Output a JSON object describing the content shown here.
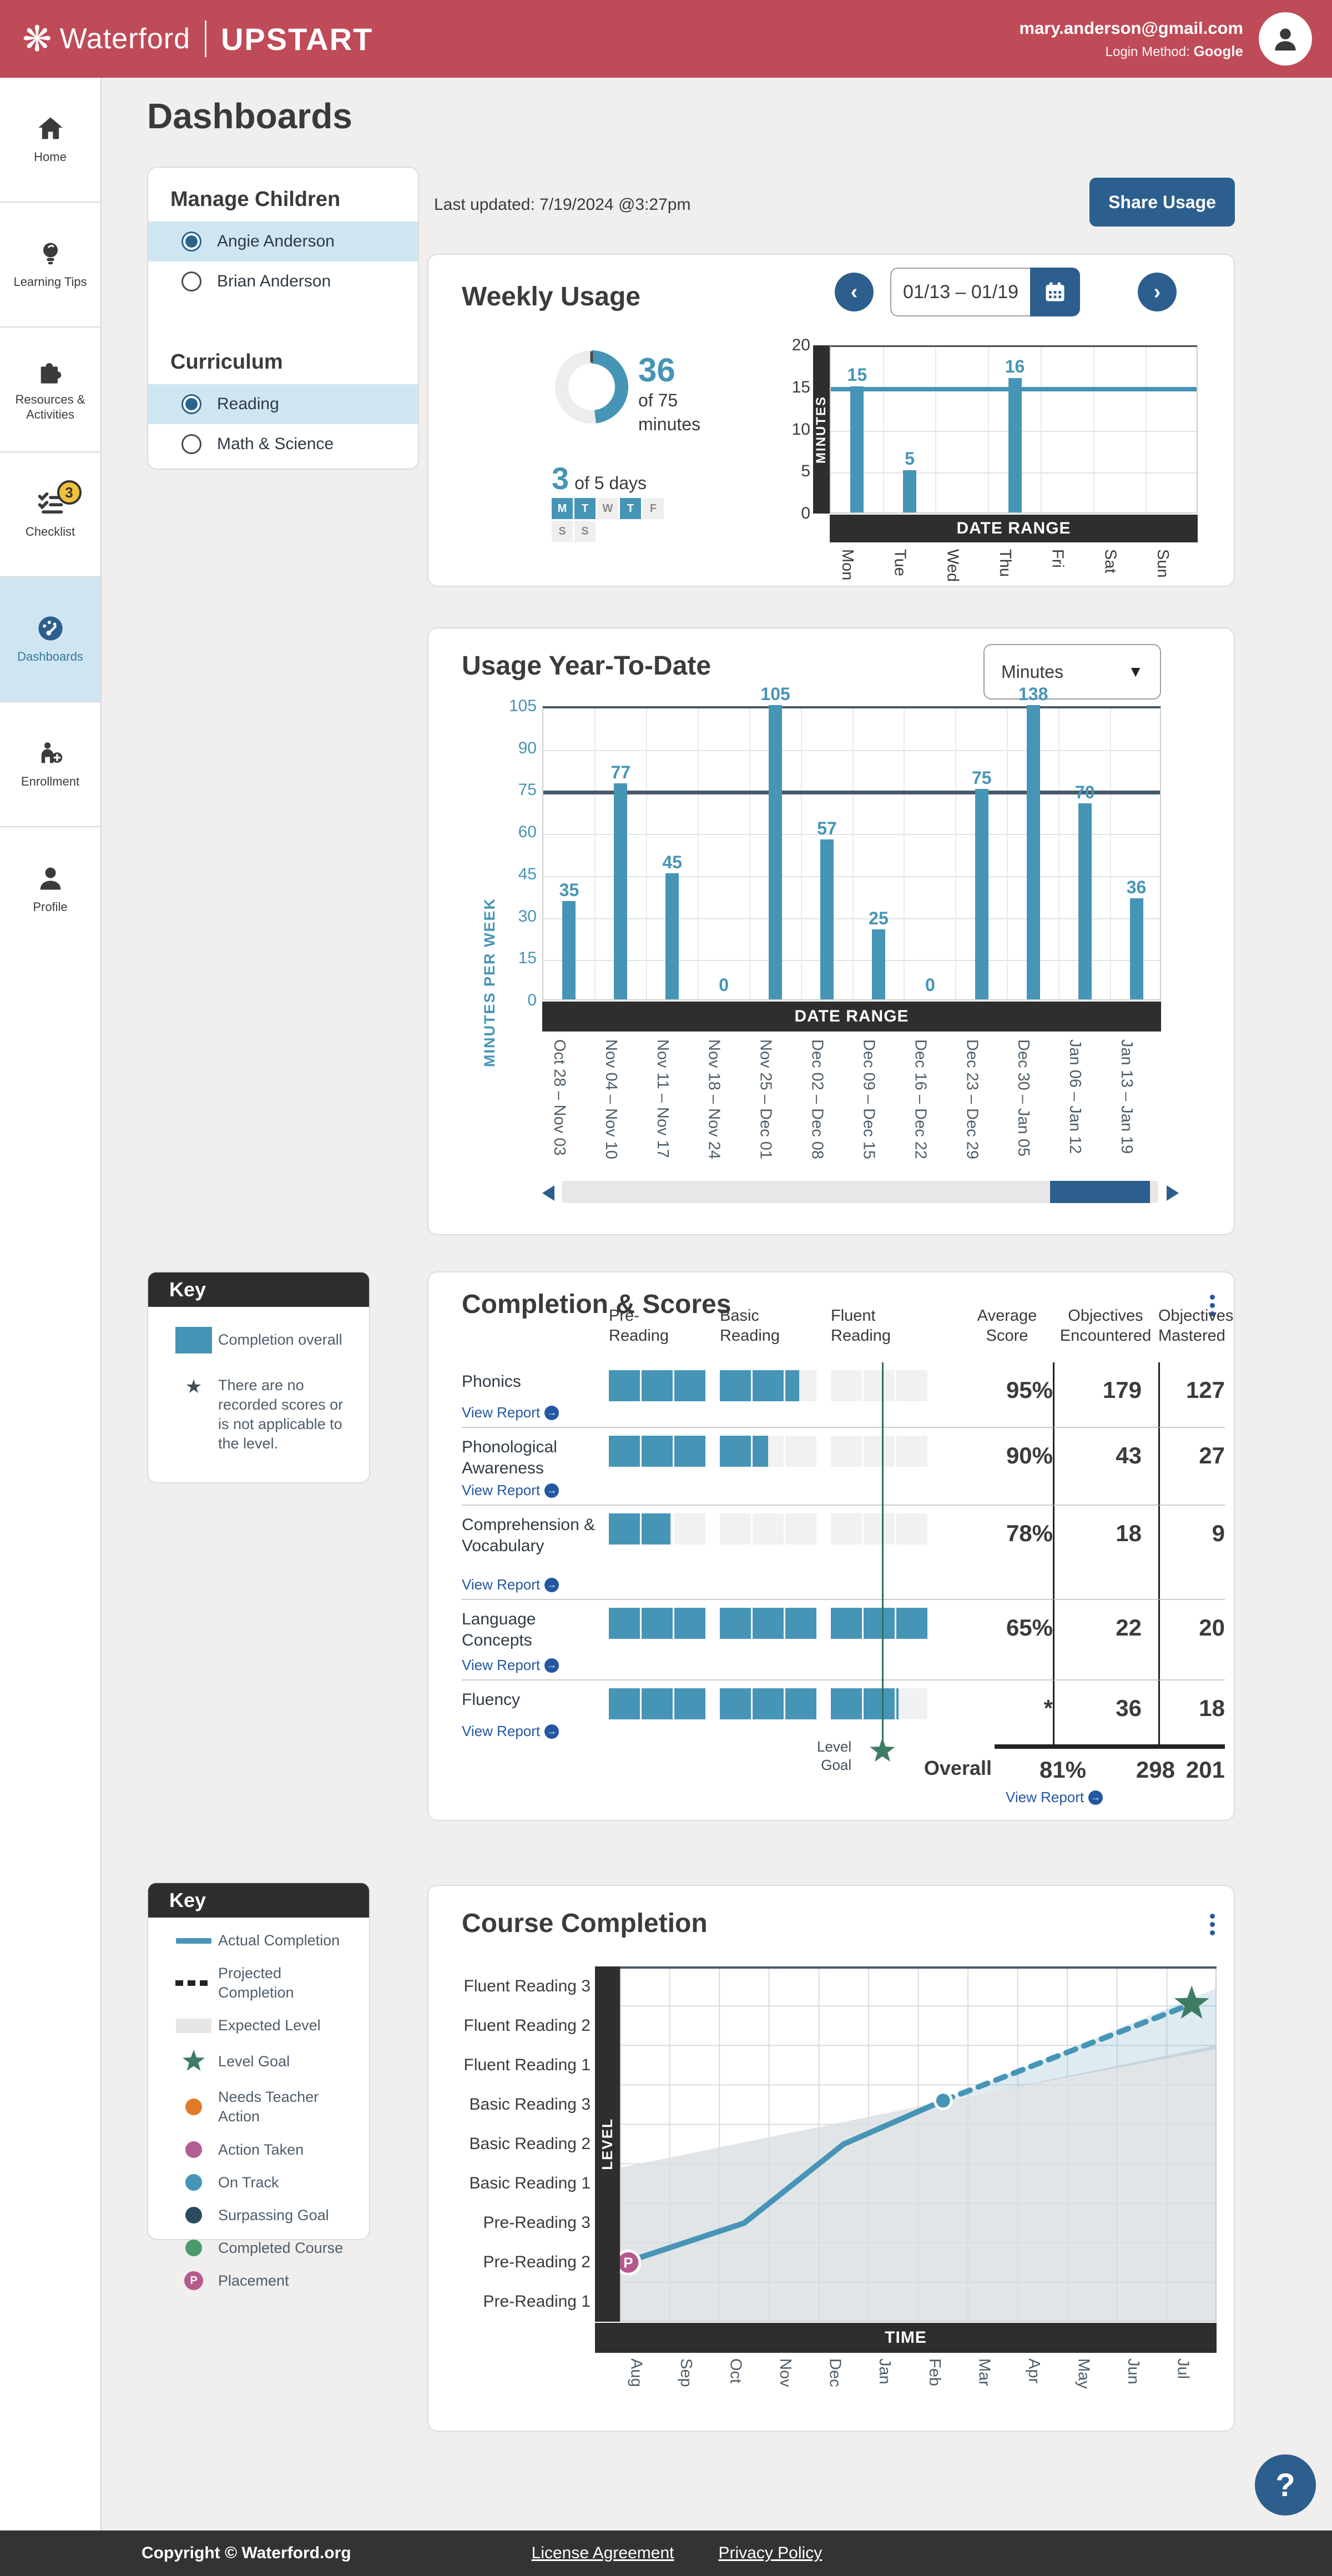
{
  "header": {
    "brand": "Waterford",
    "product": "UPSTART",
    "email": "mary.anderson@gmail.com",
    "login_label": "Login Method:",
    "login_method": "Google"
  },
  "sidebar": {
    "items": [
      {
        "label": "Home"
      },
      {
        "label": "Learning Tips"
      },
      {
        "label": "Resources & Activities"
      },
      {
        "label": "Checklist",
        "badge": "3"
      },
      {
        "label": "Dashboards",
        "active": true
      },
      {
        "label": "Enrollment"
      },
      {
        "label": "Profile"
      }
    ]
  },
  "page": {
    "title": "Dashboards",
    "last_updated": "Last updated: 7/19/2024 @3:27pm",
    "share_button": "Share Usage"
  },
  "manage": {
    "title": "Manage Children",
    "children": [
      {
        "name": "Angie Anderson",
        "selected": true
      },
      {
        "name": "Brian Anderson",
        "selected": false
      }
    ],
    "curriculum_title": "Curriculum",
    "curricula": [
      {
        "name": "Reading",
        "selected": true
      },
      {
        "name": "Math & Science",
        "selected": false
      }
    ]
  },
  "weekly": {
    "title": "Weekly Usage",
    "date_range": "01/13 – 01/19",
    "donut": {
      "value": "36",
      "of": "of 75",
      "unit": "minutes",
      "percent": 48
    },
    "days": {
      "value": "3",
      "of": "of 5 days",
      "rows": [
        [
          {
            "label": "M",
            "filled": true
          },
          {
            "label": "T",
            "filled": true
          },
          {
            "label": "W",
            "filled": false
          },
          {
            "label": "T",
            "filled": true
          },
          {
            "label": "F",
            "filled": false
          }
        ],
        [
          {
            "label": "S",
            "filled": false
          },
          {
            "label": "S",
            "filled": false
          }
        ]
      ]
    },
    "chart": {
      "ylabel": "MINUTES",
      "xlabel": "DATE RANGE",
      "ymax": 20,
      "ticks": [
        20,
        15,
        10,
        5,
        0
      ],
      "goal": 15,
      "categories": [
        "Mon",
        "Tue",
        "Wed",
        "Thu",
        "Fri",
        "Sat",
        "Sun"
      ],
      "values": [
        15,
        5,
        0,
        16,
        0,
        0,
        0
      ]
    }
  },
  "ytd": {
    "title": "Usage Year-To-Date",
    "dropdown": "Minutes",
    "chart": {
      "ylabel": "MINUTES PER WEEK",
      "xlabel": "DATE RANGE",
      "ymax": 105,
      "ticks": [
        105,
        90,
        75,
        60,
        45,
        30,
        15,
        0
      ],
      "goal": 75,
      "categories": [
        "Oct 28 – Nov 03",
        "Nov 04 – Nov 10",
        "Nov 11 – Nov 17",
        "Nov 18 – Nov 24",
        "Nov 25 – Dec 01",
        "Dec 02 – Dec 08",
        "Dec 09 – Dec 15",
        "Dec 16 – Dec 22",
        "Dec 23 – Dec 29",
        "Dec 30 – Jan 05",
        "Jan 06 – Jan 12",
        "Jan 13 – Jan 19"
      ],
      "values": [
        35,
        77,
        45,
        0,
        105,
        57,
        25,
        0,
        75,
        138,
        70,
        36
      ]
    }
  },
  "completion": {
    "title": "Completion & Scores",
    "bar_headers": [
      "Pre-\nReading",
      "Basic\nReading",
      "Fluent\nReading"
    ],
    "value_headers": [
      "Average\nScore",
      "Objectives\nEncountered",
      "Objectives\nMastered"
    ],
    "view_report": "View Report",
    "level_goal": "Level\nGoal",
    "rows": [
      {
        "label": "Phonics",
        "fills": [
          1,
          1,
          1,
          1,
          1,
          0.45,
          0,
          0,
          0
        ],
        "score": "95%",
        "encountered": "179",
        "mastered": "127"
      },
      {
        "label": "Phonological Awareness",
        "fills": [
          1,
          1,
          1,
          1,
          0.5,
          0,
          0,
          0,
          0
        ],
        "score": "90%",
        "encountered": "43",
        "mastered": "27"
      },
      {
        "label": "Comprehension & Vocabulary",
        "fills": [
          1,
          0.92,
          0,
          0,
          0,
          0,
          0,
          0,
          0
        ],
        "score": "78%",
        "encountered": "18",
        "mastered": "9"
      },
      {
        "label": "Language Concepts",
        "fills": [
          1,
          1,
          1,
          1,
          1,
          1,
          1,
          1,
          1
        ],
        "score": "65%",
        "encountered": "22",
        "mastered": "20"
      },
      {
        "label": "Fluency",
        "fills": [
          1,
          1,
          1,
          1,
          1,
          1,
          1,
          1,
          0.08
        ],
        "score": "*",
        "encountered": "36",
        "mastered": "18"
      }
    ],
    "overall": {
      "label": "Overall",
      "score": "81%",
      "encountered": "298",
      "mastered": "201"
    }
  },
  "key1": {
    "title": "Key",
    "swatch_label": "Completion overall",
    "star_label": "There are no recorded scores or is not applicable to the level."
  },
  "key2": {
    "title": "Key",
    "items": [
      {
        "type": "line",
        "label": "Actual Completion"
      },
      {
        "type": "dash",
        "label": "Projected Completion"
      },
      {
        "type": "box",
        "label": "Expected Level"
      },
      {
        "type": "star",
        "label": "Level Goal"
      },
      {
        "type": "dot",
        "color": "#e07b2a",
        "label": "Needs Teacher Action"
      },
      {
        "type": "dot",
        "color": "#b35e93",
        "label": "Action Taken"
      },
      {
        "type": "dot",
        "color": "#4695b6",
        "label": "On Track"
      },
      {
        "type": "dot",
        "color": "#2c4b5e",
        "label": "Surpassing Goal"
      },
      {
        "type": "dot",
        "color": "#4a9b6c",
        "label": "Completed Course"
      },
      {
        "type": "badge",
        "color": "#b55a8d",
        "label": "Placement"
      }
    ]
  },
  "course": {
    "title": "Course Completion",
    "ylabel": "LEVEL",
    "xlabel": "TIME",
    "levels": [
      "Fluent Reading 3",
      "Fluent Reading 2",
      "Fluent Reading 1",
      "Basic Reading 3",
      "Basic Reading 2",
      "Basic Reading 1",
      "Pre-Reading 3",
      "Pre-Reading 2",
      "Pre-Reading 1"
    ],
    "months": [
      "Aug",
      "Sep",
      "Oct",
      "Nov",
      "Dec",
      "Jan",
      "Feb",
      "Mar",
      "Apr",
      "May",
      "Jun",
      "Jul"
    ],
    "actual": [
      [
        -0.4,
        2
      ],
      [
        2,
        3
      ],
      [
        4,
        5
      ],
      [
        6,
        6.1
      ]
    ],
    "projected": [
      [
        6,
        6.1
      ],
      [
        11,
        8.55
      ]
    ],
    "expected": {
      "left_level": 4.4,
      "right_level": 7.5
    },
    "cone": {
      "top_level": 8.95,
      "bottom_level": 7.4
    }
  },
  "footer": {
    "copyright": "Copyright © Waterford.org",
    "links": [
      "License Agreement",
      "Privacy Policy"
    ]
  },
  "help": "?",
  "colors": {
    "accent": "#4695b6",
    "dark_blue": "#2c5f8d",
    "header_red": "#bf4b58",
    "goal": "#47586a",
    "star_green": "#3e7d63",
    "link": "#2457a0",
    "active_bg": "#cfe6f2",
    "badge_yellow": "#eec23f",
    "placement": "#b55a8d"
  },
  "chart_data": [
    {
      "type": "bar",
      "title": "Weekly Usage",
      "categories": [
        "Mon",
        "Tue",
        "Wed",
        "Thu",
        "Fri",
        "Sat",
        "Sun"
      ],
      "values": [
        15,
        5,
        0,
        16,
        0,
        0,
        0
      ],
      "ylabel": "MINUTES",
      "xlabel": "DATE RANGE",
      "ylim": [
        0,
        20
      ],
      "goal_line": 15,
      "annotations": [
        "36 of 75 minutes",
        "3 of 5 days",
        "days used: M,T,T"
      ]
    },
    {
      "type": "bar",
      "title": "Usage Year-To-Date",
      "unit": "Minutes",
      "categories": [
        "Oct 28 – Nov 03",
        "Nov 04 – Nov 10",
        "Nov 11 – Nov 17",
        "Nov 18 – Nov 24",
        "Nov 25 – Dec 01",
        "Dec 02 – Dec 08",
        "Dec 09 – Dec 15",
        "Dec 16 – Dec 22",
        "Dec 23 – Dec 29",
        "Dec 30 – Jan 05",
        "Jan 06 – Jan 12",
        "Jan 13 – Jan 19"
      ],
      "values": [
        35,
        77,
        45,
        0,
        105,
        57,
        25,
        0,
        75,
        138,
        70,
        36
      ],
      "ylabel": "MINUTES PER WEEK",
      "xlabel": "DATE RANGE",
      "ylim": [
        0,
        105
      ],
      "goal_line": 75,
      "grid": true
    },
    {
      "type": "table",
      "title": "Completion & Scores",
      "columns": [
        "Category",
        "Pre-Reading completion",
        "Basic Reading completion",
        "Fluent Reading completion",
        "Average Score",
        "Objectives Encountered",
        "Objectives Mastered"
      ],
      "rows": [
        [
          "Phonics",
          "100%",
          "82%",
          "0%",
          "95%",
          "179",
          "127"
        ],
        [
          "Phonological Awareness",
          "100%",
          "50%",
          "0%",
          "90%",
          "43",
          "27"
        ],
        [
          "Comprehension & Vocabulary",
          "64%",
          "0%",
          "0%",
          "78%",
          "18",
          "9"
        ],
        [
          "Language Concepts",
          "100%",
          "100%",
          "100%",
          "65%",
          "22",
          "20"
        ],
        [
          "Fluency",
          "100%",
          "100%",
          "69%",
          "*",
          "36",
          "18"
        ],
        [
          "Overall",
          "",
          "",
          "",
          "81%",
          "298",
          "201"
        ]
      ]
    },
    {
      "type": "line",
      "title": "Course Completion",
      "xlabel": "TIME",
      "ylabel": "LEVEL",
      "x": [
        "Aug",
        "Sep",
        "Oct",
        "Nov",
        "Dec",
        "Jan",
        "Feb",
        "Mar",
        "Apr",
        "May",
        "Jun",
        "Jul"
      ],
      "y_categories": [
        "Pre-Reading 1",
        "Pre-Reading 2",
        "Pre-Reading 3",
        "Basic Reading 1",
        "Basic Reading 2",
        "Basic Reading 3",
        "Fluent Reading 1",
        "Fluent Reading 2",
        "Fluent Reading 3"
      ],
      "series": [
        {
          "name": "Actual Completion",
          "points": [
            [
              "Aug",
              "Pre-Reading 2"
            ],
            [
              "Oct",
              "Pre-Reading 3"
            ],
            [
              "Dec",
              "Basic Reading 2"
            ],
            [
              "Feb",
              "Basic Reading 3"
            ]
          ]
        },
        {
          "name": "Projected Completion",
          "points": [
            [
              "Feb",
              "Basic Reading 3"
            ],
            [
              "Jul",
              "Fluent Reading 2.5"
            ]
          ]
        }
      ],
      "markers": [
        {
          "type": "Placement",
          "at": [
            "Aug",
            "Pre-Reading 2"
          ]
        },
        {
          "type": "On Track",
          "at": [
            "Feb",
            "Basic Reading 3"
          ]
        },
        {
          "type": "Level Goal",
          "at": [
            "Jul",
            "Fluent Reading 2.5"
          ]
        }
      ]
    }
  ]
}
